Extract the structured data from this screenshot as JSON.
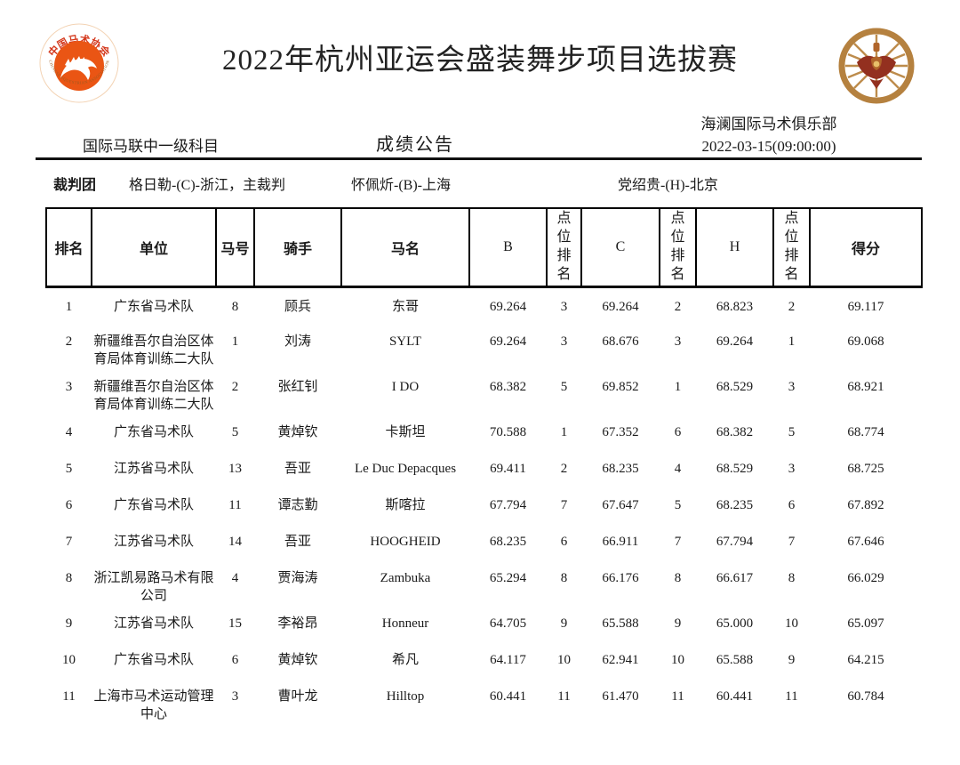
{
  "page": {
    "title": "2022年杭州亚运会盛装舞步项目选拔赛"
  },
  "logos": {
    "left": {
      "top_text": "中国马术协会",
      "bottom_text": "CHINESE EQUESTRIAN ASSOCIATION",
      "disc_color": "#ea5514",
      "text_color": "#d4381c"
    },
    "right": {
      "ring_color": "#b5813f",
      "crest_color": "#93301f"
    }
  },
  "info": {
    "level": "国际马联中一级科目",
    "announcement": "成绩公告",
    "club": "海澜国际马术俱乐部",
    "datetime": "2022-03-15(09:00:00)"
  },
  "judges": {
    "label": "裁判团",
    "list": [
      "格日勒-(C)-浙江，主裁判",
      "怀佩炘-(B)-上海",
      "党绍贵-(H)-北京"
    ]
  },
  "table": {
    "headers": [
      "排名",
      "单位",
      "马号",
      "骑手",
      "马名",
      "B",
      "点位排名",
      "C",
      "点位排名",
      "H",
      "点位排名",
      "得分"
    ],
    "rows": [
      [
        "1",
        "广东省马术队",
        "8",
        "顾兵",
        "东哥",
        "69.264",
        "3",
        "69.264",
        "2",
        "68.823",
        "2",
        "69.117"
      ],
      [
        "2",
        "新疆维吾尔自治区体育局体育训练二大队",
        "1",
        "刘涛",
        "SYLT",
        "69.264",
        "3",
        "68.676",
        "3",
        "69.264",
        "1",
        "69.068"
      ],
      [
        "3",
        "新疆维吾尔自治区体育局体育训练二大队",
        "2",
        "张红钊",
        "I DO",
        "68.382",
        "5",
        "69.852",
        "1",
        "68.529",
        "3",
        "68.921"
      ],
      [
        "4",
        "广东省马术队",
        "5",
        "黄焯钦",
        "卡斯坦",
        "70.588",
        "1",
        "67.352",
        "6",
        "68.382",
        "5",
        "68.774"
      ],
      [
        "5",
        "江苏省马术队",
        "13",
        "吾亚",
        "Le Duc Depacques",
        "69.411",
        "2",
        "68.235",
        "4",
        "68.529",
        "3",
        "68.725"
      ],
      [
        "6",
        "广东省马术队",
        "11",
        "谭志勤",
        "斯喀拉",
        "67.794",
        "7",
        "67.647",
        "5",
        "68.235",
        "6",
        "67.892"
      ],
      [
        "7",
        "江苏省马术队",
        "14",
        "吾亚",
        "HOOGHEID",
        "68.235",
        "6",
        "66.911",
        "7",
        "67.794",
        "7",
        "67.646"
      ],
      [
        "8",
        "浙江凯易路马术有限公司",
        "4",
        "贾海涛",
        "Zambuka",
        "65.294",
        "8",
        "66.176",
        "8",
        "66.617",
        "8",
        "66.029"
      ],
      [
        "9",
        "江苏省马术队",
        "15",
        "李裕昂",
        "Honneur",
        "64.705",
        "9",
        "65.588",
        "9",
        "65.000",
        "10",
        "65.097"
      ],
      [
        "10",
        "广东省马术队",
        "6",
        "黄焯钦",
        "希凡",
        "64.117",
        "10",
        "62.941",
        "10",
        "65.588",
        "9",
        "64.215"
      ],
      [
        "11",
        "上海市马术运动管理中心",
        "3",
        "曹叶龙",
        "Hilltop",
        "60.441",
        "11",
        "61.470",
        "11",
        "60.441",
        "11",
        "60.784"
      ]
    ]
  }
}
